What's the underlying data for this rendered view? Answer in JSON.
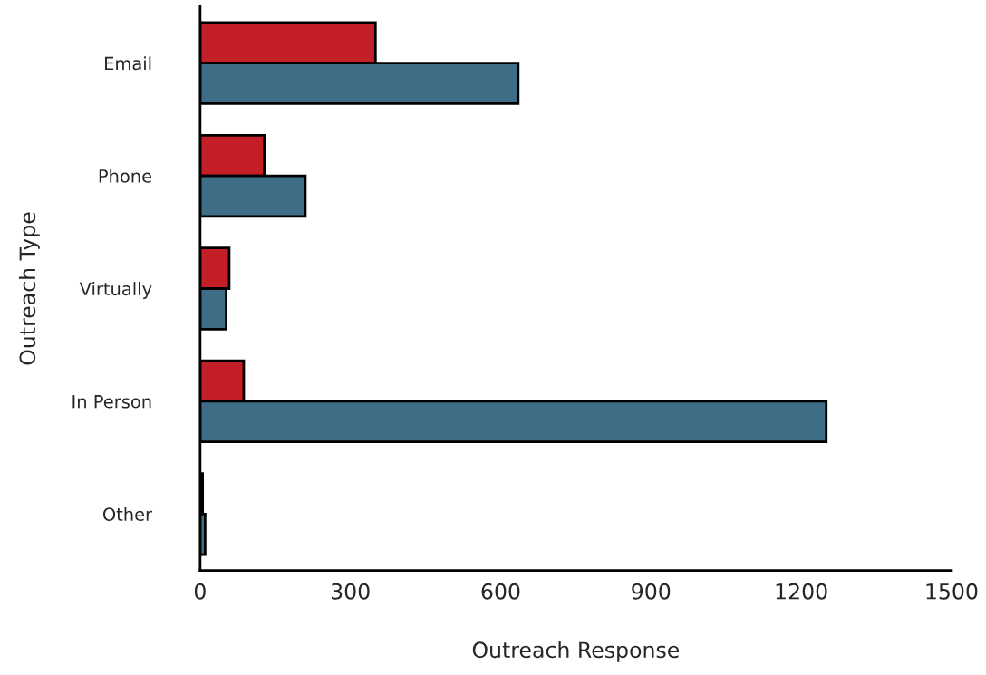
{
  "chart_data": {
    "type": "bar",
    "orientation": "horizontal",
    "xlabel": "Outreach Response",
    "ylabel": "Outreach Type",
    "categories": [
      "Email",
      "Phone",
      "Virtually",
      "In Person",
      "Other"
    ],
    "series": [
      {
        "color": "#c41f26",
        "values": [
          350,
          128,
          58,
          87,
          5
        ]
      },
      {
        "color": "#3d6e85",
        "values": [
          635,
          210,
          52,
          1250,
          10
        ]
      }
    ],
    "xlim": [
      0,
      1500
    ],
    "xticks": [
      0,
      300,
      600,
      900,
      1200,
      1500
    ],
    "grid": false,
    "legend": false
  }
}
